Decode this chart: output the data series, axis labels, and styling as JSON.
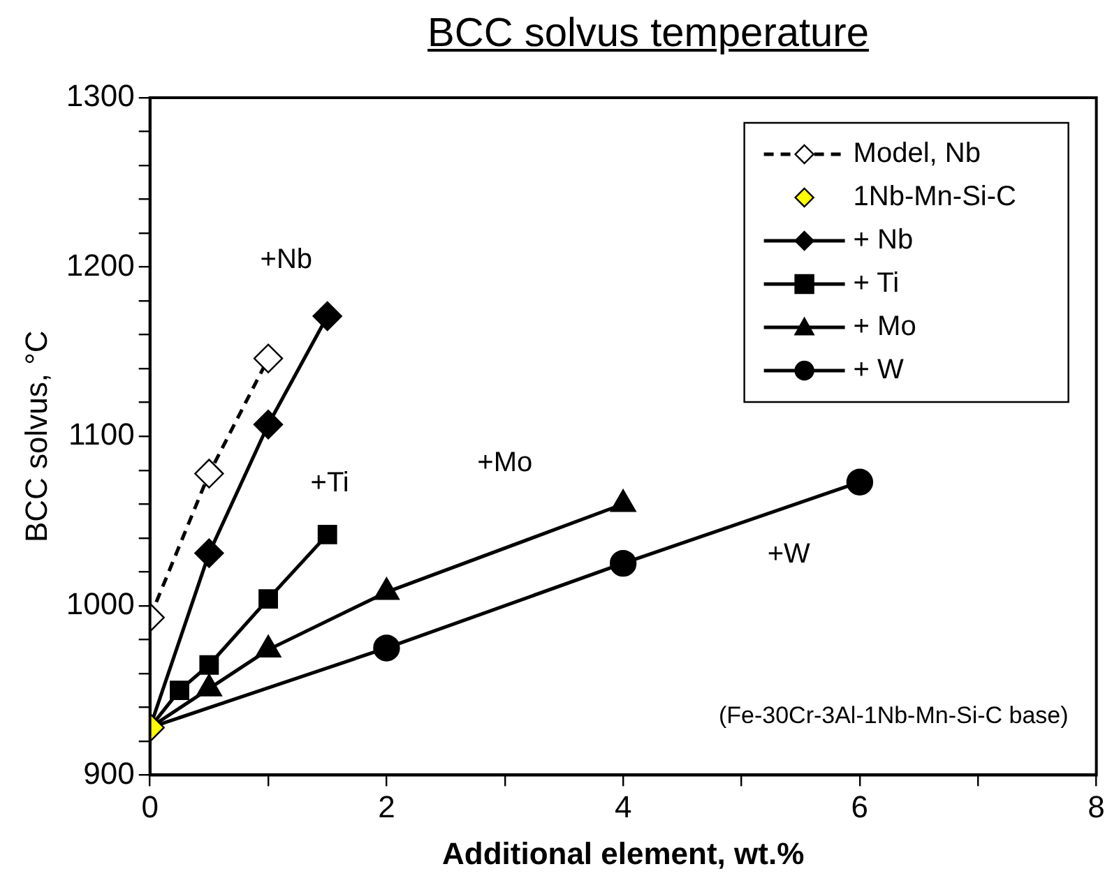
{
  "chart_data": {
    "type": "line",
    "title": "BCC solvus temperature",
    "xlabel": "Additional element, wt.%",
    "ylabel": "BCC solvus, °C",
    "xlim": [
      0,
      8
    ],
    "xticks": [
      0,
      {
        "value": 1,
        "label": null
      },
      2,
      {
        "value": 3,
        "label": null
      },
      4,
      {
        "value": 5,
        "label": null
      },
      6,
      {
        "value": 7,
        "label": null
      },
      8
    ],
    "ylim": [
      900,
      1300
    ],
    "yticks": [
      900,
      {
        "value": 920,
        "label": null
      },
      {
        "value": 940,
        "label": null
      },
      {
        "value": 960,
        "label": null
      },
      {
        "value": 980,
        "label": null
      },
      1000,
      {
        "value": 1020,
        "label": null
      },
      {
        "value": 1040,
        "label": null
      },
      {
        "value": 1060,
        "label": null
      },
      {
        "value": 1080,
        "label": null
      },
      1100,
      {
        "value": 1120,
        "label": null
      },
      {
        "value": 1140,
        "label": null
      },
      {
        "value": 1160,
        "label": null
      },
      {
        "value": 1180,
        "label": null
      },
      1200,
      {
        "value": 1220,
        "label": null
      },
      {
        "value": 1240,
        "label": null
      },
      {
        "value": 1260,
        "label": null
      },
      {
        "value": 1280,
        "label": null
      },
      1300
    ],
    "grid": false,
    "legend": "top right",
    "series": [
      {
        "name": "Model, Nb",
        "color": "#ffffff",
        "marker": "diamond",
        "line_style": "dashed",
        "x": [
          0,
          0.5,
          1
        ],
        "values": [
          993,
          1078,
          1146
        ]
      },
      {
        "name": "1Nb-Mn-Si-C",
        "type": "scatter",
        "color": "#ffff00",
        "marker": "diamond",
        "x": [
          0
        ],
        "values": [
          928
        ]
      },
      {
        "name": "+ Nb",
        "color": "#000000",
        "marker": "diamond",
        "line_style": "solid",
        "x": [
          0,
          0.5,
          1,
          1.5
        ],
        "values": [
          928,
          1031,
          1107,
          1171
        ]
      },
      {
        "name": "+ Ti",
        "color": "#000000",
        "marker": "square",
        "line_style": "solid",
        "x": [
          0,
          0.25,
          0.5,
          1,
          1.5
        ],
        "values": [
          928,
          950,
          965,
          1004,
          1042
        ]
      },
      {
        "name": "+ Mo",
        "color": "#000000",
        "marker": "triangle",
        "line_style": "solid",
        "x": [
          0,
          0.5,
          1,
          2,
          4
        ],
        "values": [
          928,
          951,
          974,
          1008,
          1060
        ]
      },
      {
        "name": "+ W",
        "color": "#000000",
        "marker": "circle",
        "line_style": "solid",
        "x": [
          0,
          2,
          4,
          6
        ],
        "values": [
          928,
          975,
          1025,
          1073
        ]
      }
    ],
    "annotations": [
      "+Nb",
      "+Ti",
      "+Mo",
      "+W",
      "(Fe-30Cr-3Al-1Nb-Mn-Si-C base)"
    ]
  }
}
